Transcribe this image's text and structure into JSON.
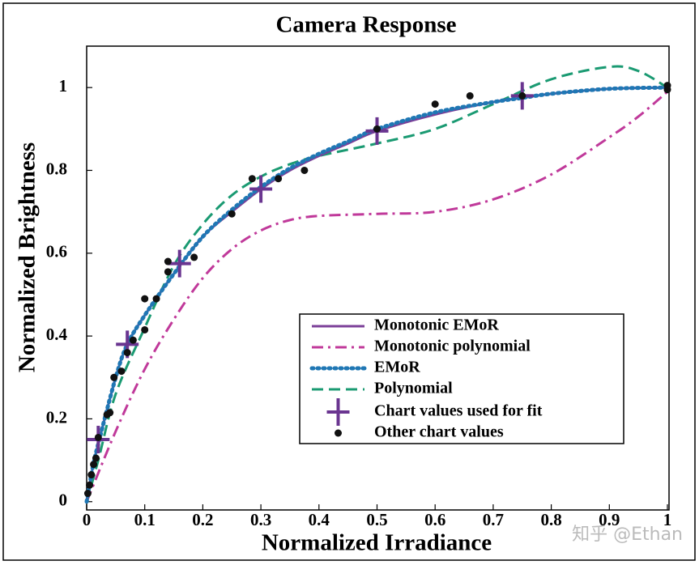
{
  "chart_data": {
    "type": "line",
    "title": "Camera Response",
    "x_label": "Normalized Irradiance",
    "y_label": "Normalized Brightness",
    "watermark": "知乎 @Ethan",
    "xlim": [
      0,
      1
    ],
    "ylim": [
      -0.02,
      1.1
    ],
    "xticks": [
      0,
      0.1,
      0.2,
      0.3,
      0.4,
      0.5,
      0.6,
      0.7,
      0.8,
      0.9,
      1
    ],
    "yticks": [
      0,
      0.2,
      0.4,
      0.6,
      0.8,
      1
    ],
    "legend": "lower right",
    "series": [
      {
        "name": "Monotonic EMoR",
        "color": "#7b3f98",
        "style": "solid",
        "x": [
          0,
          0.01,
          0.02,
          0.05,
          0.07,
          0.1,
          0.15,
          0.2,
          0.25,
          0.3,
          0.35,
          0.4,
          0.45,
          0.5,
          0.6,
          0.7,
          0.75,
          0.8,
          0.9,
          1
        ],
        "values": [
          0,
          0.08,
          0.14,
          0.3,
          0.38,
          0.45,
          0.55,
          0.64,
          0.7,
          0.755,
          0.8,
          0.835,
          0.865,
          0.895,
          0.935,
          0.965,
          0.975,
          0.985,
          0.997,
          1
        ]
      },
      {
        "name": "Monotonic polynomial",
        "color": "#c0399a",
        "style": "dashdot",
        "x": [
          0,
          0.05,
          0.1,
          0.15,
          0.2,
          0.25,
          0.3,
          0.35,
          0.4,
          0.5,
          0.6,
          0.7,
          0.8,
          0.9,
          0.95,
          1
        ],
        "values": [
          0,
          0.17,
          0.32,
          0.44,
          0.54,
          0.61,
          0.655,
          0.68,
          0.69,
          0.695,
          0.7,
          0.73,
          0.79,
          0.88,
          0.93,
          0.99
        ]
      },
      {
        "name": "EMoR",
        "color": "#1f77b4",
        "style": "dotted",
        "x": [
          0,
          0.01,
          0.02,
          0.05,
          0.07,
          0.1,
          0.15,
          0.2,
          0.25,
          0.3,
          0.35,
          0.4,
          0.45,
          0.5,
          0.6,
          0.7,
          0.75,
          0.8,
          0.9,
          1
        ],
        "values": [
          0,
          0.08,
          0.14,
          0.3,
          0.38,
          0.45,
          0.55,
          0.64,
          0.705,
          0.76,
          0.805,
          0.84,
          0.87,
          0.9,
          0.94,
          0.965,
          0.975,
          0.985,
          0.997,
          1
        ]
      },
      {
        "name": "Polynomial",
        "color": "#1a9a72",
        "style": "dashed",
        "x": [
          0,
          0.02,
          0.05,
          0.1,
          0.15,
          0.2,
          0.25,
          0.3,
          0.35,
          0.4,
          0.5,
          0.6,
          0.7,
          0.8,
          0.9,
          0.95,
          1
        ],
        "values": [
          0,
          0.1,
          0.26,
          0.42,
          0.57,
          0.67,
          0.74,
          0.785,
          0.815,
          0.835,
          0.865,
          0.9,
          0.96,
          1.02,
          1.05,
          1.04,
          1
        ]
      },
      {
        "name": "Chart values used for fit",
        "color": "#6a3590",
        "style": "plus",
        "x": [
          0.02,
          0.07,
          0.16,
          0.3,
          0.5,
          0.75
        ],
        "values": [
          0.15,
          0.38,
          0.575,
          0.755,
          0.895,
          0.98
        ]
      },
      {
        "name": "Other chart values",
        "color": "#111111",
        "style": "dot",
        "x": [
          0.002,
          0.005,
          0.008,
          0.012,
          0.016,
          0.02,
          0.035,
          0.04,
          0.047,
          0.06,
          0.07,
          0.08,
          0.1,
          0.1,
          0.12,
          0.14,
          0.14,
          0.185,
          0.25,
          0.285,
          0.33,
          0.375,
          0.5,
          0.6,
          0.66,
          0.75,
          1,
          1
        ],
        "values": [
          0.02,
          0.04,
          0.065,
          0.09,
          0.105,
          0.155,
          0.21,
          0.215,
          0.3,
          0.315,
          0.36,
          0.39,
          0.415,
          0.49,
          0.49,
          0.555,
          0.58,
          0.59,
          0.695,
          0.78,
          0.78,
          0.8,
          0.9,
          0.96,
          0.98,
          0.98,
          0.995,
          1.005
        ]
      }
    ]
  }
}
